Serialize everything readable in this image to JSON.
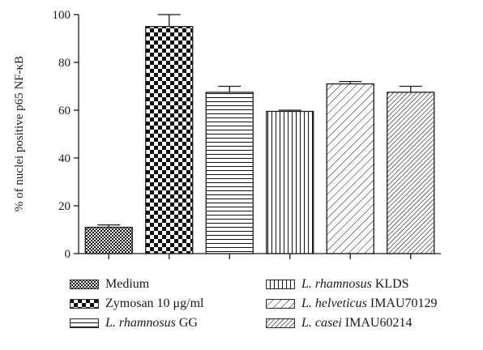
{
  "chart_data": {
    "type": "bar",
    "ylabel": "% of nuclei positive p65 NF-κB",
    "ylim": [
      0,
      100
    ],
    "yticks": [
      0,
      20,
      40,
      60,
      80,
      100
    ],
    "grid": false,
    "legend_position": "bottom",
    "categories": [
      "Medium",
      "Zymosan 10 μg/ml",
      "L. rhamnosus GG",
      "L. rhamnosus KLDS",
      "L. helveticus IMAU70129",
      "L. casei IMAU60214"
    ],
    "values": [
      11,
      95,
      67.5,
      59.5,
      71,
      67.5
    ],
    "errors": [
      1,
      5,
      2.5,
      0.5,
      1,
      2.5
    ],
    "patterns": [
      "small-checker",
      "large-checker",
      "horizontal-lines",
      "vertical-lines",
      "diagonal-down",
      "diagonal-dense"
    ],
    "legend_items": [
      {
        "pattern": "small-checker",
        "italic": "",
        "text": "Medium"
      },
      {
        "pattern": "large-checker",
        "italic": "",
        "text": "Zymosan 10 μg/ml"
      },
      {
        "pattern": "horizontal-lines",
        "italic": "L. rhamnosus",
        "text": " GG"
      },
      {
        "pattern": "vertical-lines",
        "italic": "L. rhamnosus",
        "text": " KLDS"
      },
      {
        "pattern": "diagonal-down",
        "italic": "L. helveticus",
        "text": " IMAU70129"
      },
      {
        "pattern": "diagonal-dense",
        "italic": "L. casei",
        "text": " IMAU60214"
      }
    ]
  }
}
